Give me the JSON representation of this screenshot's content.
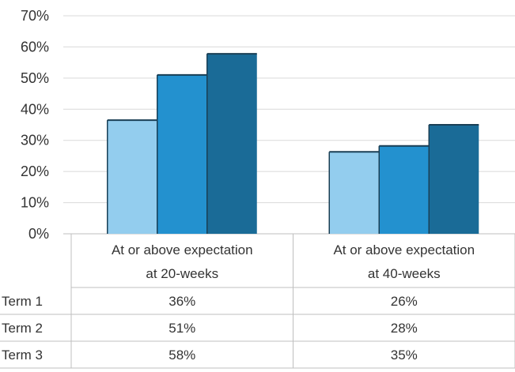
{
  "chart_data": {
    "type": "bar",
    "title": "",
    "xlabel": "",
    "ylabel": "",
    "categories": [
      [
        "At or above expectation",
        "at 20-weeks"
      ],
      [
        "At or above expectation",
        "at 40-weeks"
      ]
    ],
    "y_ticks": [
      "0%",
      "10%",
      "20%",
      "30%",
      "40%",
      "50%",
      "60%",
      "70%"
    ],
    "ylim": [
      0,
      70
    ],
    "grid": true,
    "legend": "data-table",
    "series": [
      {
        "name": "Term 1",
        "values": [
          36.5,
          26.3
        ],
        "labels": [
          "36%",
          "26%"
        ],
        "color": "#93cdee"
      },
      {
        "name": "Term 2",
        "values": [
          51,
          28.2
        ],
        "labels": [
          "51%",
          "28%"
        ],
        "color": "#2391cf"
      },
      {
        "name": "Term 3",
        "values": [
          57.8,
          35
        ],
        "labels": [
          "58%",
          "35%"
        ],
        "color": "#1a6b97"
      }
    ],
    "bar_outline_color": "#1a3f55"
  }
}
